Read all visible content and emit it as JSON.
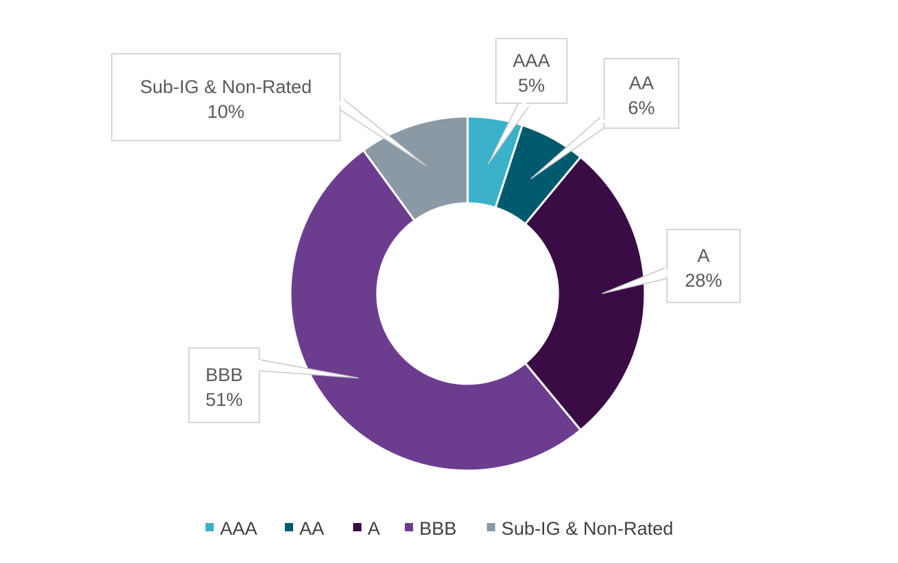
{
  "chart_data": {
    "type": "pie",
    "style": "donut",
    "title": "",
    "categories": [
      "AAA",
      "AA",
      "A",
      "BBB",
      "Sub-IG & Non-Rated"
    ],
    "values": [
      5,
      6,
      28,
      51,
      10
    ],
    "value_labels": [
      "5%",
      "6%",
      "28%",
      "51%",
      "10%"
    ],
    "unit": "%",
    "colors": [
      "#3BB0C9",
      "#005A6E",
      "#3A0C45",
      "#6C3D8F",
      "#8A99A4"
    ],
    "legend": {
      "position": "bottom",
      "labels": [
        "AAA",
        "AA",
        "A",
        "BBB",
        "Sub-IG & Non-Rated"
      ]
    }
  }
}
